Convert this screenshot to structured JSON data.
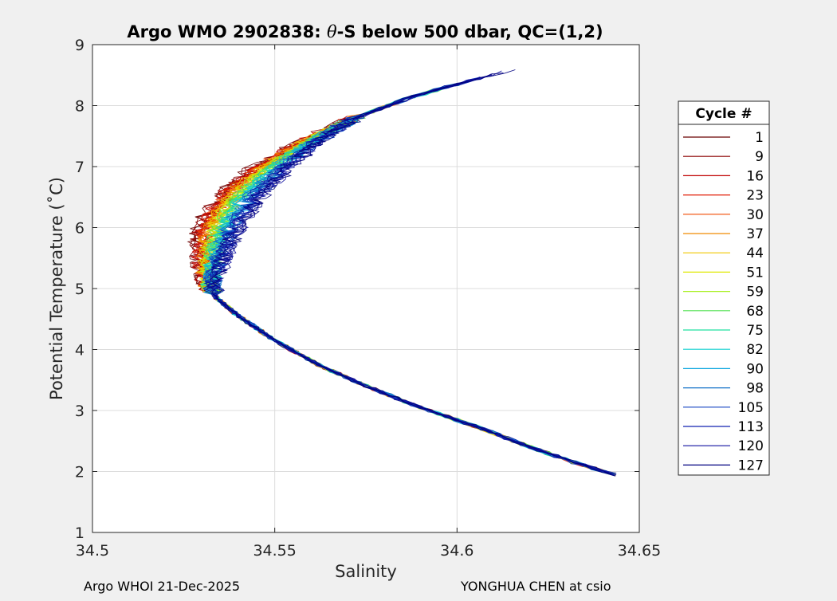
{
  "chart_data": {
    "type": "line",
    "title_prefix": "Argo WMO 2902838: ",
    "title_symbol": "θ",
    "title_suffix": "-S below 500 dbar,  QC=(1,2)",
    "xlabel": "Salinity",
    "ylabel": "Potential Temperature (˚C)",
    "xlim": [
      34.5,
      34.65
    ],
    "ylim": [
      1,
      9
    ],
    "xticks": [
      34.5,
      34.55,
      34.6,
      34.65
    ],
    "xtick_labels": [
      "34.5",
      "34.55",
      "34.6",
      "34.65"
    ],
    "yticks": [
      1,
      2,
      3,
      4,
      5,
      6,
      7,
      8,
      9
    ],
    "ytick_labels": [
      "1",
      "2",
      "3",
      "4",
      "5",
      "6",
      "7",
      "8",
      "9"
    ],
    "grid": true,
    "legend": {
      "title": "Cycle #",
      "position": "right",
      "entries": [
        {
          "label": "1",
          "color": "#6b0000"
        },
        {
          "label": "9",
          "color": "#8c0000"
        },
        {
          "label": "16",
          "color": "#c00000"
        },
        {
          "label": "23",
          "color": "#e01800"
        },
        {
          "label": "30",
          "color": "#f04a00"
        },
        {
          "label": "37",
          "color": "#f08a00"
        },
        {
          "label": "44",
          "color": "#f0c800"
        },
        {
          "label": "51",
          "color": "#dfe800"
        },
        {
          "label": "59",
          "color": "#a8f020"
        },
        {
          "label": "68",
          "color": "#50e050"
        },
        {
          "label": "75",
          "color": "#20e0a0"
        },
        {
          "label": "82",
          "color": "#10d0d0"
        },
        {
          "label": "90",
          "color": "#10a8e0"
        },
        {
          "label": "98",
          "color": "#1070c8"
        },
        {
          "label": "105",
          "color": "#1040c0"
        },
        {
          "label": "113",
          "color": "#1020b0"
        },
        {
          "label": "120",
          "color": "#1010a0"
        },
        {
          "label": "127",
          "color": "#000080"
        }
      ]
    },
    "mean_profile": [
      {
        "s": 34.643,
        "t": 1.95
      },
      {
        "s": 34.632,
        "t": 2.15
      },
      {
        "s": 34.62,
        "t": 2.4
      },
      {
        "s": 34.607,
        "t": 2.7
      },
      {
        "s": 34.59,
        "t": 3.05
      },
      {
        "s": 34.575,
        "t": 3.4
      },
      {
        "s": 34.562,
        "t": 3.75
      },
      {
        "s": 34.55,
        "t": 4.15
      },
      {
        "s": 34.54,
        "t": 4.55
      },
      {
        "s": 34.534,
        "t": 4.85
      },
      {
        "s": 34.532,
        "t": 5.05
      },
      {
        "s": 34.532,
        "t": 5.4
      },
      {
        "s": 34.533,
        "t": 5.8
      },
      {
        "s": 34.536,
        "t": 6.2
      },
      {
        "s": 34.541,
        "t": 6.6
      },
      {
        "s": 34.549,
        "t": 7.0
      },
      {
        "s": 34.559,
        "t": 7.4
      },
      {
        "s": 34.572,
        "t": 7.8
      },
      {
        "s": 34.588,
        "t": 8.15
      },
      {
        "s": 34.603,
        "t": 8.4
      },
      {
        "s": 34.617,
        "t": 8.62
      }
    ]
  },
  "footer": {
    "left": "Argo WHOI 21-Dec-2025",
    "right": "YONGHUA CHEN at csio"
  }
}
